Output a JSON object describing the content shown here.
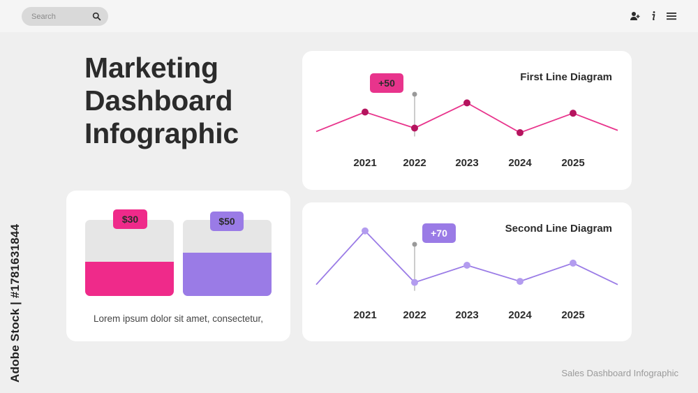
{
  "header": {
    "search_placeholder": "Search",
    "icons": [
      "search-icon",
      "add-user-icon",
      "info-icon",
      "menu-icon"
    ]
  },
  "title": {
    "line1": "Marketing",
    "line2": "Dashboard",
    "line3": "Infographic"
  },
  "bars_card": {
    "bars": [
      {
        "label": "$30",
        "fill_ratio": 0.45,
        "color": "#ef2a8a",
        "tag_color": "#ef2a8a"
      },
      {
        "label": "$50",
        "fill_ratio": 0.57,
        "color": "#9a7be6",
        "tag_color": "#9a7be6"
      }
    ],
    "caption": "Lorem ipsum dolor sit amet, consectetur,"
  },
  "chart_data": [
    {
      "type": "line",
      "title": "First Line Diagram",
      "categories": [
        "2021",
        "2022",
        "2023",
        "2024",
        "2025"
      ],
      "values": [
        62,
        48,
        70,
        44,
        61
      ],
      "start_value": 45,
      "end_value": 46,
      "highlight": {
        "category": "2022",
        "label": "+50"
      },
      "color": "#e8348c",
      "point_color": "#b5145e",
      "ylim": [
        30,
        80
      ]
    },
    {
      "type": "line",
      "title": "Second Line Diagram",
      "categories": [
        "2021",
        "2022",
        "2023",
        "2024",
        "2025"
      ],
      "values": [
        78,
        30,
        46,
        31,
        48
      ],
      "start_value": 28,
      "end_value": 28,
      "highlight": {
        "category": "2022",
        "label": "+70"
      },
      "color": "#9a7be6",
      "point_color": "#b39cef",
      "ylim": [
        20,
        85
      ]
    }
  ],
  "footer": {
    "text": "Sales Dashboard Infographic"
  },
  "watermark": {
    "text": "Adobe Stock | #1781631844"
  }
}
